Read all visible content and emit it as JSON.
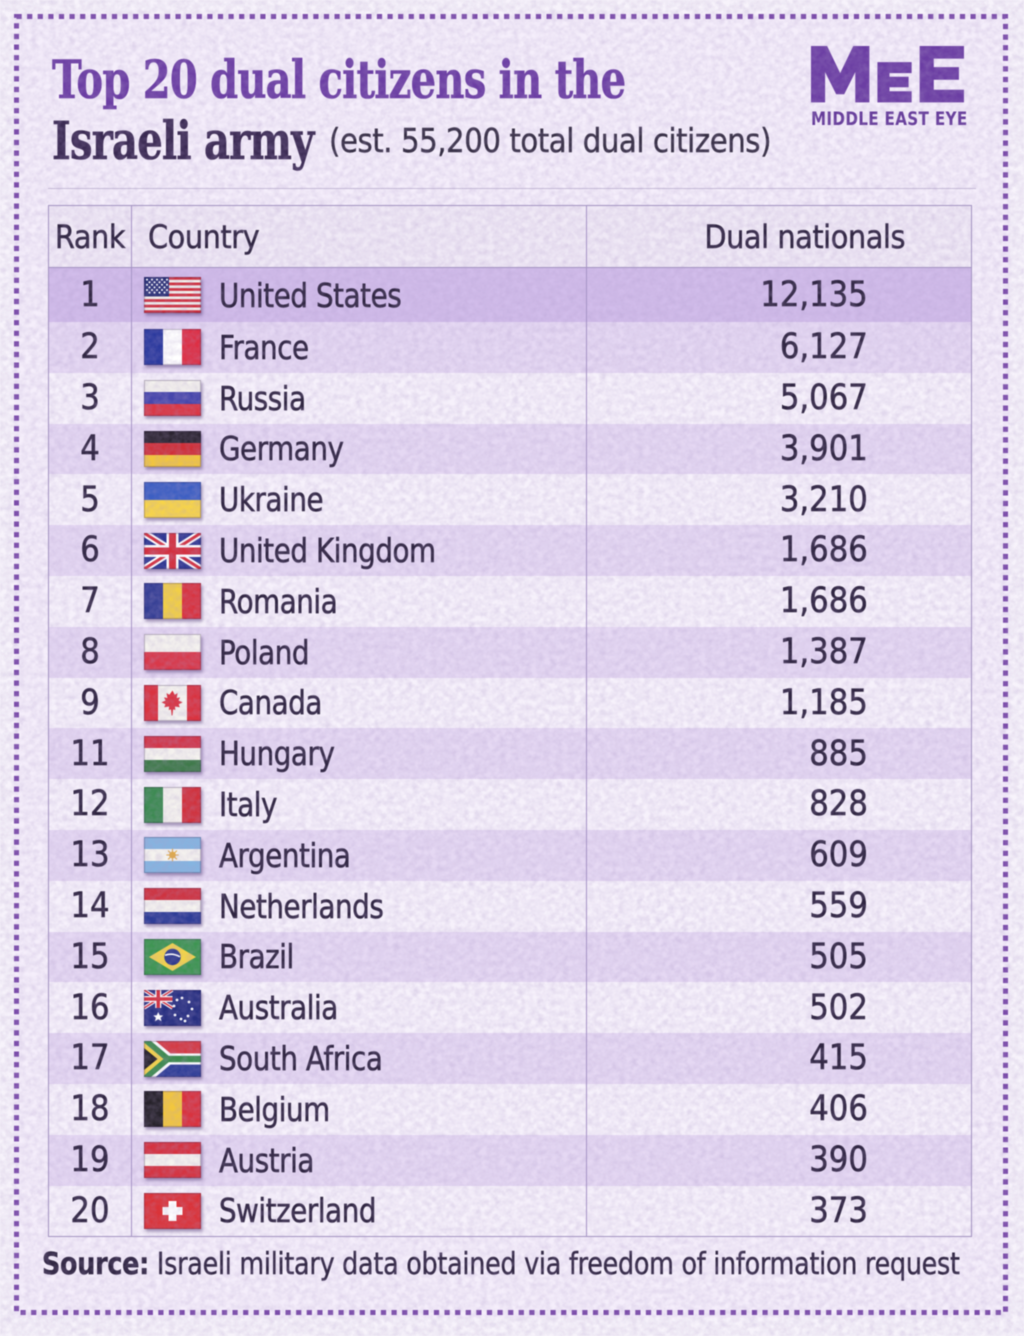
{
  "page": {
    "background": "#ece4f4",
    "border_color": "#7a4ba9",
    "accent_purple": "#6b3ea3",
    "highlight_row": "#c8b2e3"
  },
  "header": {
    "title_line1": "Top 20 dual citizens in the",
    "title_line2": "Israeli army",
    "subtitle": "(est. 55,200 total dual citizens)",
    "logo": {
      "text": "MEE",
      "tagline": "MIDDLE EAST EYE"
    }
  },
  "table": {
    "columns": [
      "Rank",
      "Country",
      "Dual nationals"
    ],
    "rows": [
      {
        "rank": "1",
        "country": "United States",
        "flag": "us",
        "value": "12,135"
      },
      {
        "rank": "2",
        "country": "France",
        "flag": "fr",
        "value": "6,127"
      },
      {
        "rank": "3",
        "country": "Russia",
        "flag": "ru",
        "value": "5,067"
      },
      {
        "rank": "4",
        "country": "Germany",
        "flag": "de",
        "value": "3,901"
      },
      {
        "rank": "5",
        "country": "Ukraine",
        "flag": "ua",
        "value": "3,210"
      },
      {
        "rank": "6",
        "country": "United Kingdom",
        "flag": "gb",
        "value": "1,686"
      },
      {
        "rank": "7",
        "country": "Romania",
        "flag": "ro",
        "value": "1,686"
      },
      {
        "rank": "8",
        "country": "Poland",
        "flag": "pl",
        "value": "1,387"
      },
      {
        "rank": "9",
        "country": "Canada",
        "flag": "ca",
        "value": "1,185"
      },
      {
        "rank": "11",
        "country": "Hungary",
        "flag": "hu",
        "value": "885"
      },
      {
        "rank": "12",
        "country": "Italy",
        "flag": "it",
        "value": "828"
      },
      {
        "rank": "13",
        "country": "Argentina",
        "flag": "ar",
        "value": "609"
      },
      {
        "rank": "14",
        "country": "Netherlands",
        "flag": "nl",
        "value": "559"
      },
      {
        "rank": "15",
        "country": "Brazil",
        "flag": "br",
        "value": "505"
      },
      {
        "rank": "16",
        "country": "Australia",
        "flag": "au",
        "value": "502"
      },
      {
        "rank": "17",
        "country": "South Africa",
        "flag": "za",
        "value": "415"
      },
      {
        "rank": "18",
        "country": "Belgium",
        "flag": "be",
        "value": "406"
      },
      {
        "rank": "19",
        "country": "Austria",
        "flag": "at",
        "value": "390"
      },
      {
        "rank": "20",
        "country": "Switzerland",
        "flag": "ch",
        "value": "373"
      }
    ]
  },
  "footer": {
    "source_label": "Source:",
    "source_text": " Israeli military data obtained via freedom of information request"
  },
  "chart_data": {
    "type": "table",
    "title": "Top 20 dual citizens in the Israeli army",
    "subtitle": "(est. 55,200 total dual citizens)",
    "columns": [
      "Rank",
      "Country",
      "Dual nationals"
    ],
    "ranks": [
      1,
      2,
      3,
      4,
      5,
      6,
      7,
      8,
      9,
      11,
      12,
      13,
      14,
      15,
      16,
      17,
      18,
      19,
      20
    ],
    "categories": [
      "United States",
      "France",
      "Russia",
      "Germany",
      "Ukraine",
      "United Kingdom",
      "Romania",
      "Poland",
      "Canada",
      "Hungary",
      "Italy",
      "Argentina",
      "Netherlands",
      "Brazil",
      "Australia",
      "South Africa",
      "Belgium",
      "Austria",
      "Switzerland"
    ],
    "values": [
      12135,
      6127,
      5067,
      3901,
      3210,
      1686,
      1686,
      1387,
      1185,
      885,
      828,
      609,
      559,
      505,
      502,
      415,
      406,
      390,
      373
    ],
    "highlighted_row": "United States",
    "source": "Israeli military data obtained via freedom of information request"
  }
}
